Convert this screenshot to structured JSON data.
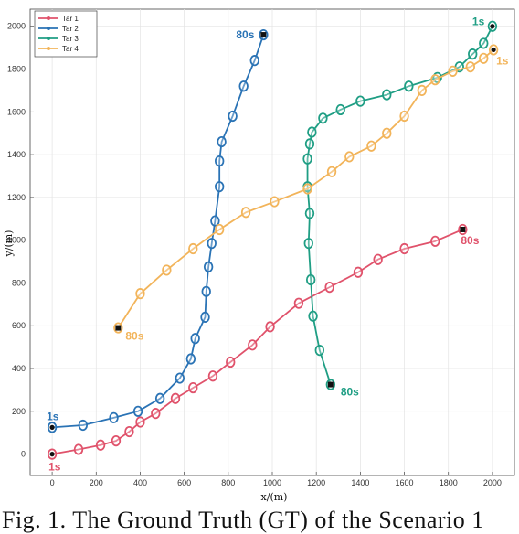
{
  "caption": "Fig. 1. The Ground Truth (GT) of the Scenario 1",
  "colors": {
    "tar1": "#e0526b",
    "tar2": "#2a73b5",
    "tar3": "#1f9e84",
    "tar4": "#f2b45a"
  },
  "chart_data": {
    "type": "line",
    "xlabel": "x/(m)",
    "ylabel": "y/(m)",
    "xlim": [
      -100,
      2100
    ],
    "ylim": [
      -100,
      2080
    ],
    "xticks": [
      "0",
      "200",
      "400",
      "600",
      "800",
      "1000",
      "1200",
      "1400",
      "1600",
      "1800",
      "2000"
    ],
    "yticks": [
      "0",
      "200",
      "400",
      "600",
      "800",
      "1000",
      "1200",
      "1400",
      "1600",
      "1800",
      "2000"
    ],
    "grid": true,
    "legend_position": "top-left",
    "series": [
      {
        "name": "Tar 1",
        "color": "#e0526b",
        "points": [
          [
            0,
            0
          ],
          [
            120,
            22
          ],
          [
            220,
            42
          ],
          [
            290,
            62
          ],
          [
            350,
            105
          ],
          [
            400,
            150
          ],
          [
            470,
            190
          ],
          [
            560,
            260
          ],
          [
            640,
            310
          ],
          [
            730,
            365
          ],
          [
            810,
            430
          ],
          [
            910,
            510
          ],
          [
            990,
            595
          ],
          [
            1120,
            705
          ],
          [
            1260,
            780
          ],
          [
            1390,
            850
          ],
          [
            1480,
            910
          ],
          [
            1600,
            960
          ],
          [
            1740,
            995
          ],
          [
            1865,
            1050
          ]
        ],
        "start_label": "1s",
        "end_label": "80s"
      },
      {
        "name": "Tar 2",
        "color": "#2a73b5",
        "points": [
          [
            0,
            125
          ],
          [
            140,
            135
          ],
          [
            280,
            170
          ],
          [
            390,
            200
          ],
          [
            490,
            260
          ],
          [
            580,
            355
          ],
          [
            630,
            445
          ],
          [
            650,
            540
          ],
          [
            695,
            640
          ],
          [
            700,
            760
          ],
          [
            710,
            875
          ],
          [
            725,
            985
          ],
          [
            740,
            1090
          ],
          [
            760,
            1250
          ],
          [
            760,
            1370
          ],
          [
            770,
            1460
          ],
          [
            820,
            1580
          ],
          [
            870,
            1720
          ],
          [
            920,
            1840
          ],
          [
            960,
            1960
          ]
        ],
        "start_label": "1s",
        "end_label": "80s"
      },
      {
        "name": "Tar 3",
        "color": "#1f9e84",
        "points": [
          [
            2000,
            2000
          ],
          [
            1960,
            1920
          ],
          [
            1910,
            1870
          ],
          [
            1850,
            1810
          ],
          [
            1750,
            1760
          ],
          [
            1620,
            1720
          ],
          [
            1520,
            1680
          ],
          [
            1400,
            1650
          ],
          [
            1310,
            1610
          ],
          [
            1230,
            1570
          ],
          [
            1180,
            1505
          ],
          [
            1170,
            1450
          ],
          [
            1160,
            1380
          ],
          [
            1160,
            1250
          ],
          [
            1170,
            1125
          ],
          [
            1165,
            985
          ],
          [
            1175,
            815
          ],
          [
            1185,
            645
          ],
          [
            1215,
            485
          ],
          [
            1265,
            325
          ]
        ],
        "start_label": "1s",
        "end_label": "80s"
      },
      {
        "name": "Tar 4",
        "color": "#f2b45a",
        "points": [
          [
            2005,
            1890
          ],
          [
            1960,
            1850
          ],
          [
            1900,
            1810
          ],
          [
            1820,
            1790
          ],
          [
            1740,
            1750
          ],
          [
            1680,
            1700
          ],
          [
            1600,
            1580
          ],
          [
            1520,
            1500
          ],
          [
            1450,
            1440
          ],
          [
            1350,
            1390
          ],
          [
            1270,
            1320
          ],
          [
            1160,
            1240
          ],
          [
            1010,
            1180
          ],
          [
            880,
            1130
          ],
          [
            760,
            1050
          ],
          [
            640,
            960
          ],
          [
            520,
            860
          ],
          [
            400,
            750
          ],
          [
            300,
            590
          ]
        ],
        "start_label": "1s",
        "end_label": "80s"
      }
    ]
  }
}
